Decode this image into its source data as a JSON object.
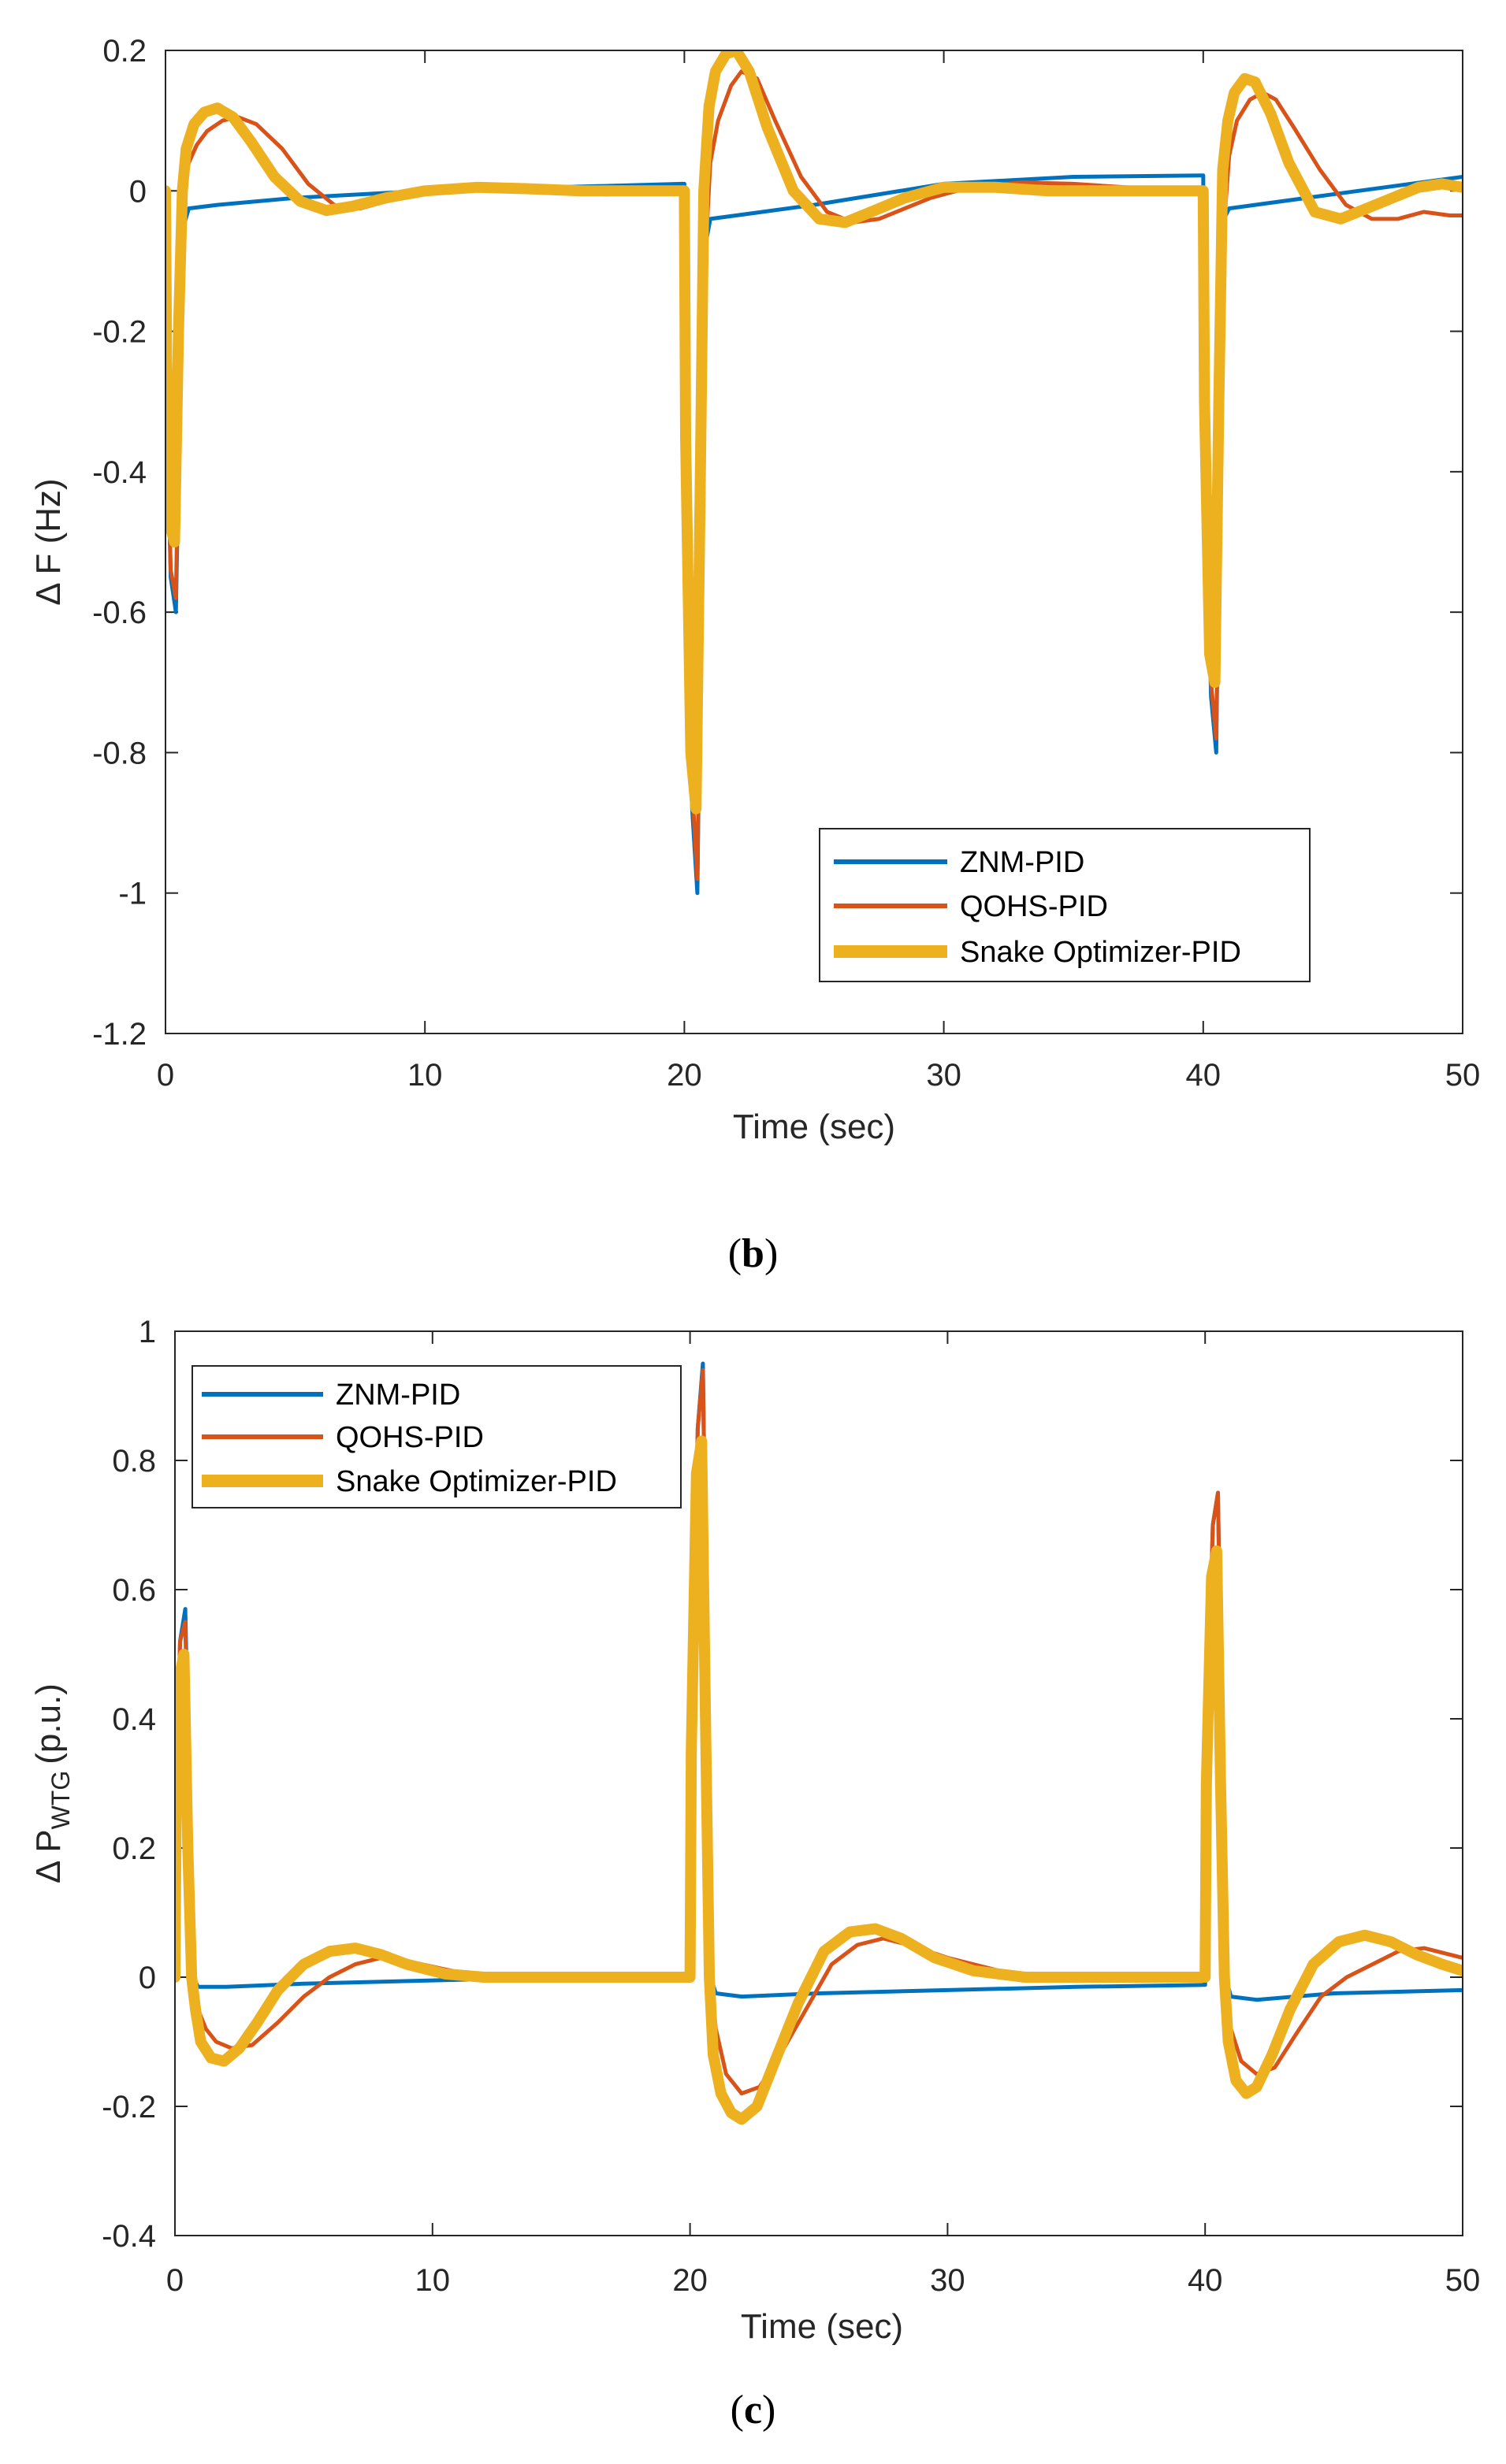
{
  "colors": {
    "znm": "#0072BD",
    "qohs": "#D95319",
    "snake": "#EDB120",
    "axis": "#262626"
  },
  "chart_data": [
    {
      "type": "line",
      "panel": "b",
      "ylabel": "Δ F (Hz)",
      "xlabel": "Time (sec)",
      "xlim": [
        0,
        50
      ],
      "ylim": [
        -1.2,
        0.2
      ],
      "xticks": [
        "0",
        "10",
        "20",
        "30",
        "40",
        "50"
      ],
      "yticks": [
        "0.2",
        "0",
        "-0.2",
        "-0.4",
        "-0.6",
        "-0.8",
        "-1",
        "-1.2"
      ],
      "legend_position": "bottom-right",
      "series": [
        {
          "name": "ZNM-PID",
          "key": "znm",
          "x": [
            0,
            0.05,
            0.2,
            0.4,
            0.55,
            0.7,
            0.9,
            2,
            5,
            10,
            15,
            19.9,
            20,
            20.05,
            20.3,
            20.5,
            20.65,
            20.8,
            21,
            22,
            25,
            30,
            35,
            39.9,
            40,
            40.05,
            40.3,
            40.5,
            40.65,
            40.8,
            41,
            42,
            45,
            50
          ],
          "y": [
            0,
            -0.3,
            -0.55,
            -0.6,
            -0.3,
            -0.05,
            -0.025,
            -0.02,
            -0.01,
            0,
            0.005,
            0.01,
            0.01,
            -0.4,
            -0.88,
            -1.0,
            -0.55,
            -0.08,
            -0.04,
            -0.035,
            -0.02,
            0.01,
            0.02,
            0.022,
            0.022,
            -0.3,
            -0.72,
            -0.8,
            -0.35,
            -0.04,
            -0.025,
            -0.02,
            -0.005,
            0.02
          ]
        },
        {
          "name": "QOHS-PID",
          "key": "qohs",
          "x": [
            0,
            0.05,
            0.2,
            0.4,
            0.55,
            0.7,
            0.9,
            1.2,
            1.6,
            2.2,
            2.8,
            3.5,
            4.5,
            5.5,
            6.5,
            7.5,
            8.5,
            9.5,
            11,
            13,
            15,
            17,
            19.9,
            20,
            20.05,
            20.3,
            20.5,
            20.65,
            20.8,
            21,
            21.3,
            21.8,
            22.2,
            22.8,
            23.5,
            24.5,
            25.5,
            26.5,
            27.5,
            28.5,
            29.5,
            31,
            33,
            35,
            37,
            39.9,
            40,
            40.05,
            40.3,
            40.5,
            40.65,
            40.8,
            41,
            41.3,
            41.8,
            42.3,
            42.8,
            43.5,
            44.5,
            45.5,
            46.5,
            47.5,
            48.5,
            49.5,
            50
          ],
          "y": [
            0,
            -0.3,
            -0.54,
            -0.58,
            -0.25,
            0.0,
            0.04,
            0.065,
            0.085,
            0.1,
            0.105,
            0.095,
            0.06,
            0.01,
            -0.02,
            -0.025,
            -0.015,
            -0.005,
            0.005,
            0.005,
            0.0,
            -0.005,
            0.0,
            0.0,
            -0.35,
            -0.85,
            -0.98,
            -0.55,
            -0.1,
            0.04,
            0.1,
            0.15,
            0.17,
            0.16,
            0.1,
            0.02,
            -0.03,
            -0.045,
            -0.04,
            -0.025,
            -0.01,
            0.005,
            0.012,
            0.01,
            0.005,
            0.0,
            0.0,
            -0.3,
            -0.7,
            -0.78,
            -0.35,
            -0.05,
            0.05,
            0.1,
            0.13,
            0.14,
            0.13,
            0.09,
            0.03,
            -0.02,
            -0.04,
            -0.04,
            -0.03,
            -0.035,
            -0.035
          ]
        },
        {
          "name": "Snake Optimizer-PID",
          "key": "snake",
          "x": [
            0,
            0.05,
            0.2,
            0.35,
            0.5,
            0.65,
            0.8,
            1.1,
            1.5,
            2.0,
            2.6,
            3.3,
            4.2,
            5.2,
            6.2,
            7.2,
            8.5,
            10,
            12,
            14,
            16,
            18,
            19.9,
            20,
            20.05,
            20.25,
            20.45,
            20.6,
            20.75,
            20.95,
            21.2,
            21.6,
            22.0,
            22.5,
            23.2,
            24.2,
            25.2,
            26.2,
            27.2,
            28.5,
            30,
            32,
            34,
            36,
            38,
            39.9,
            40,
            40.05,
            40.25,
            40.45,
            40.6,
            40.75,
            40.95,
            41.2,
            41.6,
            42.0,
            42.6,
            43.3,
            44.3,
            45.3,
            46.3,
            47.3,
            48.3,
            49.2,
            50
          ],
          "y": [
            0,
            -0.28,
            -0.48,
            -0.5,
            -0.2,
            0.0,
            0.06,
            0.095,
            0.112,
            0.118,
            0.105,
            0.07,
            0.02,
            -0.015,
            -0.028,
            -0.022,
            -0.01,
            0.0,
            0.005,
            0.003,
            0.0,
            0.0,
            0.0,
            0.0,
            -0.35,
            -0.8,
            -0.88,
            -0.45,
            0.0,
            0.12,
            0.17,
            0.195,
            0.2,
            0.17,
            0.09,
            0.0,
            -0.04,
            -0.045,
            -0.03,
            -0.01,
            0.005,
            0.005,
            0.0,
            0.0,
            0.0,
            0.0,
            0.0,
            -0.3,
            -0.66,
            -0.7,
            -0.3,
            0.03,
            0.1,
            0.14,
            0.16,
            0.155,
            0.11,
            0.04,
            -0.03,
            -0.04,
            -0.025,
            -0.01,
            0.005,
            0.01,
            0.005
          ]
        }
      ]
    },
    {
      "type": "line",
      "panel": "c",
      "ylabel_main": "Δ P",
      "ylabel_sub": "WTG",
      "ylabel_unit": "(p.u.)",
      "xlabel": "Time (sec)",
      "xlim": [
        0,
        50
      ],
      "ylim": [
        -0.4,
        1
      ],
      "xticks": [
        "0",
        "10",
        "20",
        "30",
        "40",
        "50"
      ],
      "yticks": [
        "1",
        "0.8",
        "0.6",
        "0.4",
        "0.2",
        "0",
        "-0.2",
        "-0.4"
      ],
      "legend_position": "top-left",
      "series": [
        {
          "name": "ZNM-PID",
          "key": "znm",
          "x": [
            0,
            0.05,
            0.2,
            0.4,
            0.55,
            0.7,
            0.9,
            2,
            5,
            10,
            15,
            19.9,
            20,
            20.05,
            20.3,
            20.5,
            20.65,
            20.8,
            21,
            22,
            25,
            30,
            35,
            39.9,
            40,
            40.05,
            40.3,
            40.5,
            40.65,
            40.8,
            41,
            42,
            45,
            50
          ],
          "y": [
            0,
            0.3,
            0.52,
            0.57,
            0.3,
            0.0,
            -0.015,
            -0.015,
            -0.01,
            -0.005,
            0.0,
            0.0,
            0.0,
            0.4,
            0.85,
            0.95,
            0.5,
            0.0,
            -0.025,
            -0.03,
            -0.025,
            -0.02,
            -0.015,
            -0.012,
            -0.012,
            0.35,
            0.7,
            0.75,
            0.35,
            0.0,
            -0.03,
            -0.035,
            -0.025,
            -0.02
          ]
        },
        {
          "name": "QOHS-PID",
          "key": "qohs",
          "x": [
            0,
            0.05,
            0.2,
            0.4,
            0.55,
            0.7,
            0.9,
            1.2,
            1.6,
            2.2,
            3.0,
            4.0,
            5.0,
            6.0,
            7.0,
            8.0,
            9.0,
            10.5,
            12,
            14,
            16,
            18,
            19.9,
            20,
            20.05,
            20.3,
            20.5,
            20.65,
            20.8,
            21.0,
            21.4,
            22.0,
            22.7,
            23.5,
            24.5,
            25.5,
            26.5,
            27.5,
            28.5,
            30,
            32,
            34,
            36,
            38,
            39.9,
            40,
            40.05,
            40.3,
            40.5,
            40.65,
            40.8,
            41.0,
            41.4,
            42.0,
            42.7,
            43.5,
            44.5,
            45.5,
            46.5,
            47.5,
            48.5,
            49.5,
            50
          ],
          "y": [
            0,
            0.3,
            0.52,
            0.55,
            0.25,
            0.0,
            -0.05,
            -0.08,
            -0.1,
            -0.11,
            -0.105,
            -0.07,
            -0.03,
            0.0,
            0.02,
            0.03,
            0.025,
            0.012,
            0.0,
            -0.005,
            0.0,
            0.0,
            0.0,
            0.0,
            0.4,
            0.85,
            0.94,
            0.5,
            0.0,
            -0.08,
            -0.15,
            -0.18,
            -0.17,
            -0.12,
            -0.05,
            0.02,
            0.05,
            0.06,
            0.05,
            0.03,
            0.01,
            0.0,
            0.0,
            0.0,
            0.0,
            0.0,
            0.35,
            0.7,
            0.75,
            0.35,
            0.0,
            -0.08,
            -0.13,
            -0.15,
            -0.14,
            -0.09,
            -0.03,
            0.0,
            0.02,
            0.04,
            0.045,
            0.035,
            0.03
          ]
        },
        {
          "name": "Snake Optimizer-PID",
          "key": "snake",
          "x": [
            0,
            0.05,
            0.2,
            0.35,
            0.5,
            0.65,
            0.8,
            1.0,
            1.4,
            1.9,
            2.5,
            3.2,
            4.0,
            5.0,
            6.0,
            7.0,
            8.0,
            9.0,
            10.5,
            12,
            14,
            16,
            18,
            19.9,
            20,
            20.05,
            20.25,
            20.45,
            20.6,
            20.75,
            20.9,
            21.2,
            21.6,
            22.0,
            22.6,
            23.3,
            24.2,
            25.2,
            26.2,
            27.2,
            28.2,
            29.5,
            31,
            33,
            35,
            37,
            39.9,
            40,
            40.05,
            40.25,
            40.45,
            40.6,
            40.75,
            40.9,
            41.2,
            41.6,
            42.0,
            42.6,
            43.3,
            44.2,
            45.2,
            46.2,
            47.2,
            48.2,
            49.2,
            50
          ],
          "y": [
            0,
            0.28,
            0.47,
            0.5,
            0.2,
            0.0,
            -0.05,
            -0.1,
            -0.125,
            -0.13,
            -0.11,
            -0.07,
            -0.02,
            0.02,
            0.04,
            0.045,
            0.035,
            0.02,
            0.005,
            0.0,
            0.0,
            0.0,
            0.0,
            0.0,
            0.0,
            0.35,
            0.78,
            0.83,
            0.4,
            0.0,
            -0.12,
            -0.18,
            -0.21,
            -0.22,
            -0.2,
            -0.13,
            -0.04,
            0.04,
            0.07,
            0.075,
            0.06,
            0.03,
            0.01,
            0.0,
            0.0,
            0.0,
            0.0,
            0.0,
            0.3,
            0.62,
            0.66,
            0.3,
            0.0,
            -0.1,
            -0.16,
            -0.18,
            -0.17,
            -0.12,
            -0.05,
            0.02,
            0.055,
            0.065,
            0.055,
            0.035,
            0.02,
            0.01
          ]
        }
      ]
    }
  ],
  "captions": {
    "b": "b",
    "c": "c"
  }
}
